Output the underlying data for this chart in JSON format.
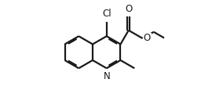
{
  "bg_color": "#ffffff",
  "bond_color": "#1a1a1a",
  "figsize": [
    2.84,
    1.38
  ],
  "dpi": 100,
  "bond_lw": 1.6,
  "font_size": 8.5,
  "xlim": [
    0.0,
    1.0
  ],
  "ylim": [
    0.0,
    1.0
  ]
}
